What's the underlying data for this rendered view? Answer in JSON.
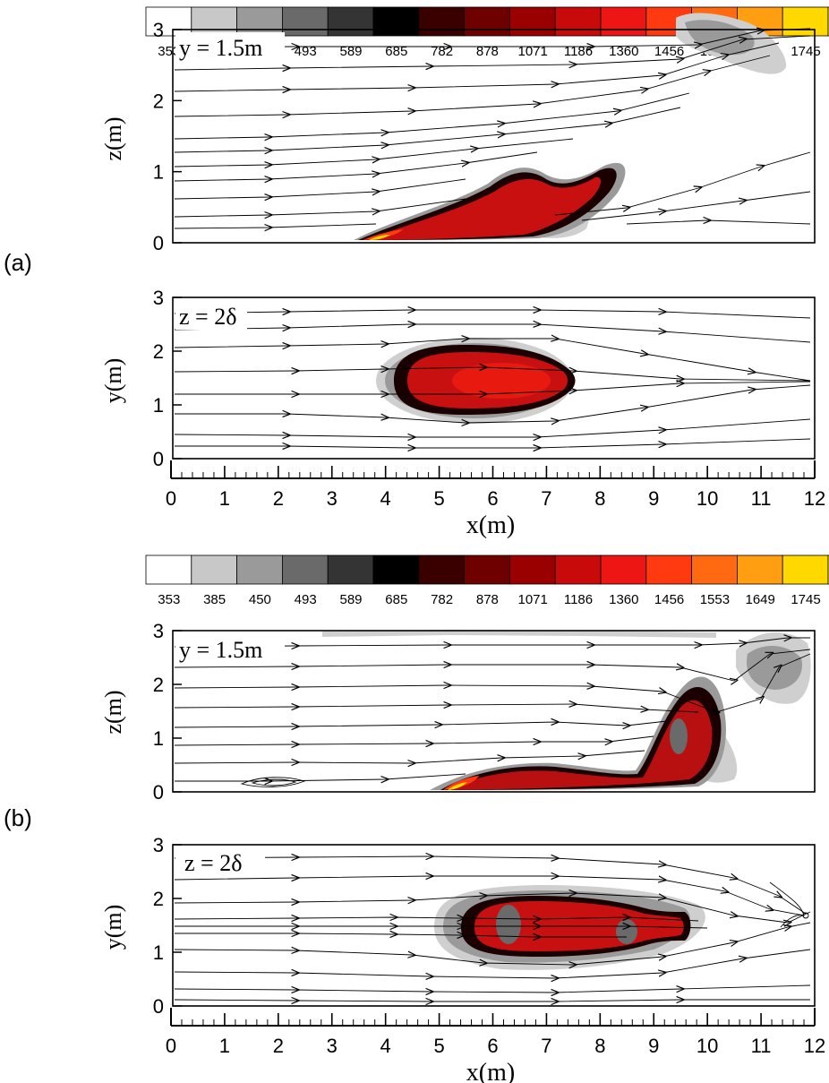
{
  "colorbar": {
    "levels": [
      "353",
      "385",
      "450",
      "493",
      "589",
      "685",
      "782",
      "878",
      "1071",
      "1186",
      "1360",
      "1456",
      "1553",
      "1649",
      "1745"
    ],
    "colors": [
      "#ffffff",
      "#c8c8c8",
      "#9a9a9a",
      "#6a6a6a",
      "#343434",
      "#000000",
      "#3a0000",
      "#6e0000",
      "#9a0000",
      "#c80a0a",
      "#ee1515",
      "#ff3a10",
      "#ff6a10",
      "#ff9e10",
      "#ffd800",
      "#ffff00"
    ]
  },
  "palette": {
    "dark": "#1a0000",
    "red": "#c81010",
    "bright": "#ff2a10",
    "grey": "#9a9a9a",
    "lightgrey": "#cfcfcf",
    "black": "#000000"
  },
  "panels": [
    {
      "tag": "(a)",
      "top": {
        "label": "y = 1.5m",
        "ylabel": "z(m)"
      },
      "bottom": {
        "label": "z = 2δ",
        "ylabel": "y(m)"
      },
      "xlabel": "x(m)"
    },
    {
      "tag": "(b)",
      "top": {
        "label": "y = 1.5m",
        "ylabel": "z(m)"
      },
      "bottom": {
        "label": "z = 2δ",
        "ylabel": "y(m)"
      },
      "xlabel": "x(m)"
    }
  ],
  "chart_data": [
    {
      "type": "heatmap",
      "panel": "a-top",
      "ylabel": "z(m)",
      "x_range": [
        0,
        12
      ],
      "y_range": [
        0,
        3
      ],
      "y_ticks": [
        0,
        1,
        2,
        3
      ],
      "annotation": "y = 1.5m"
    },
    {
      "type": "heatmap",
      "panel": "a-bottom",
      "xlabel": "x(m)",
      "ylabel": "y(m)",
      "x_range": [
        0,
        12
      ],
      "y_range": [
        0,
        3
      ],
      "x_ticks": [
        0,
        1,
        2,
        3,
        4,
        5,
        6,
        7,
        8,
        9,
        10,
        11,
        12
      ],
      "y_ticks": [
        0,
        1,
        2,
        3
      ],
      "annotation": "z = 2δ"
    },
    {
      "type": "heatmap",
      "panel": "b-top",
      "ylabel": "z(m)",
      "x_range": [
        0,
        12
      ],
      "y_range": [
        0,
        3
      ],
      "y_ticks": [
        0,
        1,
        2,
        3
      ],
      "annotation": "y = 1.5m"
    },
    {
      "type": "heatmap",
      "panel": "b-bottom",
      "xlabel": "x(m)",
      "ylabel": "y(m)",
      "x_range": [
        0,
        12
      ],
      "y_range": [
        0,
        3
      ],
      "x_ticks": [
        0,
        1,
        2,
        3,
        4,
        5,
        6,
        7,
        8,
        9,
        10,
        11,
        12
      ],
      "y_ticks": [
        0,
        1,
        2,
        3
      ],
      "annotation": "z = 2δ"
    }
  ]
}
